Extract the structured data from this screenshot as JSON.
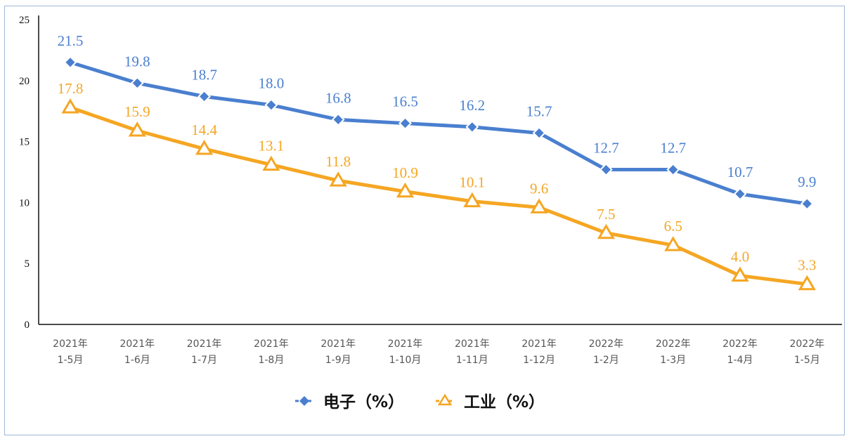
{
  "chart_data": {
    "type": "line",
    "categories": [
      [
        "2021年",
        "1-5月"
      ],
      [
        "2021年",
        "1-6月"
      ],
      [
        "2021年",
        "1-7月"
      ],
      [
        "2021年",
        "1-8月"
      ],
      [
        "2021年",
        "1-9月"
      ],
      [
        "2021年",
        "1-10月"
      ],
      [
        "2021年",
        "1-11月"
      ],
      [
        "2021年",
        "1-12月"
      ],
      [
        "2022年",
        "1-2月"
      ],
      [
        "2022年",
        "1-3月"
      ],
      [
        "2022年",
        "1-4月"
      ],
      [
        "2022年",
        "1-5月"
      ]
    ],
    "series": [
      {
        "name": "电子（%）",
        "color": "#4a7fcf",
        "marker": "diamond",
        "values": [
          21.5,
          19.8,
          18.7,
          18.0,
          16.8,
          16.5,
          16.2,
          15.7,
          12.7,
          12.7,
          10.7,
          9.9
        ],
        "labels": [
          "21.5",
          "19.8",
          "18.7",
          "18.0",
          "16.8",
          "16.5",
          "16.2",
          "15.7",
          "12.7",
          "12.7",
          "10.7",
          "9.9"
        ]
      },
      {
        "name": "工业（%）",
        "color": "#f5a623",
        "marker": "triangle-open",
        "values": [
          17.8,
          15.9,
          14.4,
          13.1,
          11.8,
          10.9,
          10.1,
          9.6,
          7.5,
          6.5,
          4.0,
          3.3
        ],
        "labels": [
          "17.8",
          "15.9",
          "14.4",
          "13.1",
          "11.8",
          "10.9",
          "10.1",
          "9.6",
          "7.5",
          "6.5",
          "4.0",
          "3.3"
        ]
      }
    ],
    "yticks": [
      "0",
      "5",
      "10",
      "15",
      "20",
      "25"
    ],
    "ylim": [
      0,
      25
    ],
    "grid": false,
    "legend_position": "bottom-center"
  }
}
